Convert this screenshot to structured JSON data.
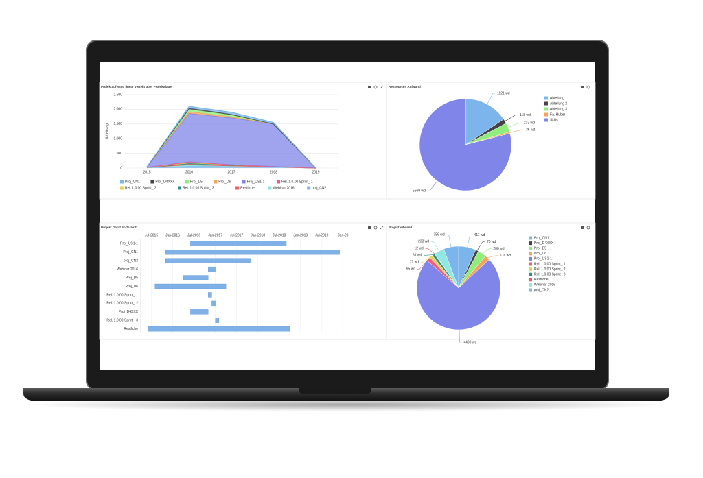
{
  "chart_data": [
    {
      "type": "area",
      "stacked": true,
      "title": "Projektaufwand linear verteilt über Projektdauer",
      "ylabel": "Arbeitstag",
      "categories": [
        "2015",
        "2016",
        "2017",
        "2018",
        "2019"
      ],
      "ylim": [
        0,
        2500
      ],
      "yticks": [
        0,
        500,
        {
          "value": 1000,
          "label": "1.000"
        },
        {
          "value": 1500,
          "label": "1.500"
        },
        {
          "value": 2000,
          "label": "2.000"
        },
        {
          "value": 2500,
          "label": "2.500"
        }
      ],
      "grid": true,
      "series": [
        {
          "name": "Proj_CN1",
          "color": "#7cb5ec",
          "values": [
            5,
            60,
            70,
            50,
            0
          ]
        },
        {
          "name": "Proj_D4XXX",
          "color": "#434348",
          "values": [
            0,
            40,
            20,
            0,
            0
          ]
        },
        {
          "name": "Proj_D5",
          "color": "#90ed7d",
          "values": [
            0,
            80,
            60,
            0,
            0
          ]
        },
        {
          "name": "Proj_D6",
          "color": "#f7a35c",
          "values": [
            5,
            60,
            40,
            0,
            0
          ]
        },
        {
          "name": "Proj_US1-1",
          "color": "#8085e9",
          "values": [
            10,
            1650,
            1600,
            1450,
            0
          ]
        },
        {
          "name": "Rel. 1.0.00 Sprint_ 1",
          "color": "#f15c80",
          "values": [
            0,
            30,
            0,
            0,
            0
          ]
        },
        {
          "name": "Rel. 1.0.00 Sprint_ 2",
          "color": "#e4d354",
          "values": [
            0,
            20,
            0,
            0,
            0
          ]
        },
        {
          "name": "Rel. 1.0.00 Sprint_ 3",
          "color": "#2b908f",
          "values": [
            0,
            30,
            30,
            0,
            0
          ]
        },
        {
          "name": "Restliche",
          "color": "#f45b5b",
          "values": [
            10,
            30,
            20,
            10,
            0
          ]
        },
        {
          "name": "Webinar 2016",
          "color": "#91e8e1",
          "values": [
            0,
            40,
            0,
            0,
            0
          ]
        },
        {
          "name": "proj_CN2",
          "color": "#7cb5ec",
          "values": [
            10,
            60,
            60,
            40,
            0
          ]
        }
      ]
    },
    {
      "type": "pie",
      "title": "Ressourcen Aufwand",
      "categories": [
        "Abteilung 1",
        "Abteilung 2",
        "Abteilung 3",
        "Fa. Huber",
        "Skills"
      ],
      "values": [
        1121,
        118,
        233,
        36,
        5669
      ],
      "value_labels": [
        "1121 wd",
        "118 wd",
        "233 wd",
        "36 wd",
        "5669 wd"
      ],
      "colors": [
        "#7cb5ec",
        "#434348",
        "#90ed7d",
        "#f7a35c",
        "#8085e9"
      ]
    },
    {
      "type": "gantt",
      "title": "Projekt Gantt Fortschritt",
      "color": "#7fb0e8",
      "categories": [
        "Proj_US1-1",
        "Proj_CN1",
        "proj_CN2",
        "Webinar 2016",
        "Proj_D5",
        "Proj_D6",
        "Rel. 1.0.00 Sprint_ 1",
        "Rel. 1.0.00 Sprint_ 2",
        "Proj_D4XXX",
        "Rel. 1.0.00 Sprint_ 3",
        "Restliche"
      ],
      "start": [
        "2016-06",
        "2015-11",
        "2015-11",
        "2016-11",
        "2016-04",
        "2015-08",
        "2016-11",
        "2016-12",
        "2016-06",
        "2017-01",
        "2015-06"
      ],
      "end": [
        "2018-09",
        "2019-12",
        "2017-11",
        "2017-01",
        "2016-11",
        "2017-04",
        "2016-12",
        "2017-01",
        "2016-11",
        "2017-02",
        "2018-10"
      ],
      "xlim": [
        "2015-04",
        "2020-02"
      ],
      "xticks": [
        {
          "value": "2015-07",
          "label": "Jul-2015"
        },
        {
          "value": "2016-01",
          "label": "Jan-2016"
        },
        {
          "value": "2016-07",
          "label": "Jul-2016"
        },
        {
          "value": "2017-01",
          "label": "Jan-2017"
        },
        {
          "value": "2017-07",
          "label": "Jul-2017"
        },
        {
          "value": "2018-01",
          "label": "Jan-2018"
        },
        {
          "value": "2018-07",
          "label": "Jul-2018"
        },
        {
          "value": "2019-01",
          "label": "Jan-2019"
        },
        {
          "value": "2019-07",
          "label": "Jul-2019"
        },
        {
          "value": "2020-01",
          "label": "Jan-20"
        }
      ]
    },
    {
      "type": "pie",
      "title": "Projektaufwand",
      "categories": [
        "Proj_CN1",
        "Proj_D4XXX",
        "Proj_D5",
        "Proj_D6",
        "Proj_US1-1",
        "Rel. 1.0.00 Sprint_ 1",
        "Rel. 1.0.00 Sprint_ 2",
        "Rel. 1.0.00 Sprint_ 3",
        "Restliche",
        "Webinar 2016",
        "proj_CN2"
      ],
      "values": [
        411,
        70,
        200,
        116,
        4490,
        95,
        73,
        61,
        12,
        233,
        356
      ],
      "value_labels": [
        "411 wd",
        "70 wd",
        "200 wd",
        "116 wd",
        "4490 wd",
        "95 wd",
        "73 wd",
        "61 wd",
        "12 wd",
        "233 wd",
        "356 wd"
      ],
      "colors": [
        "#7cb5ec",
        "#434348",
        "#90ed7d",
        "#f7a35c",
        "#8085e9",
        "#f15c80",
        "#e4d354",
        "#2b908f",
        "#f45b5b",
        "#91e8e1",
        "#7cb5ec"
      ]
    }
  ]
}
